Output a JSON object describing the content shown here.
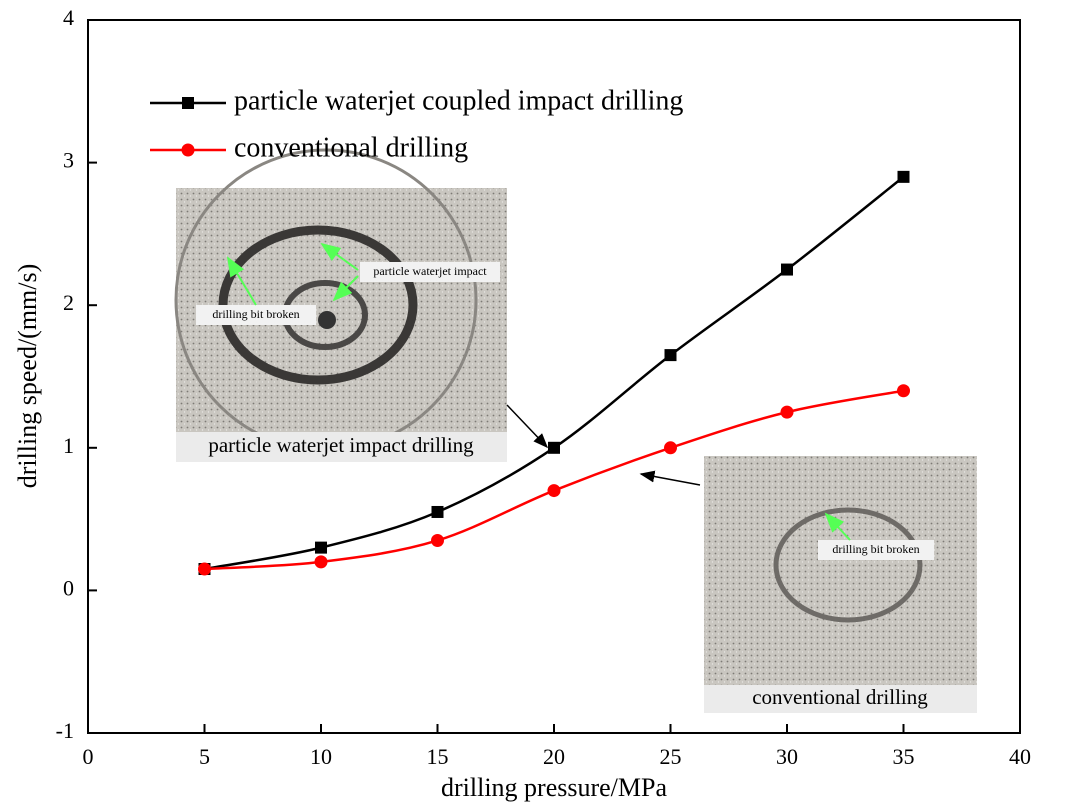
{
  "chart_data": {
    "type": "line",
    "x_label": "drilling pressure/MPa",
    "y_label": "drilling speed/(mm/s)",
    "x": [
      5,
      10,
      15,
      20,
      25,
      30,
      35
    ],
    "series": [
      {
        "name": "particle waterjet coupled impact drilling",
        "color": "#000000",
        "marker": "square",
        "values": [
          0.15,
          0.3,
          0.55,
          1.0,
          1.65,
          2.25,
          2.9
        ]
      },
      {
        "name": "conventional drilling",
        "color": "#ff0000",
        "marker": "circle",
        "values": [
          0.15,
          0.2,
          0.35,
          0.7,
          1.0,
          1.25,
          1.4
        ]
      }
    ],
    "xlim": [
      0,
      40
    ],
    "xticks": [
      0,
      5,
      10,
      15,
      20,
      25,
      30,
      35,
      40
    ],
    "ylim": [
      -1,
      4
    ],
    "yticks": [
      -1,
      0,
      1,
      2,
      3,
      4
    ],
    "legend": "upper left",
    "annotations": [
      "particle waterjet impact",
      "drilling bit broken",
      "particle waterjet  impact drilling",
      "drilling bit broken",
      "conventional drilling"
    ]
  }
}
